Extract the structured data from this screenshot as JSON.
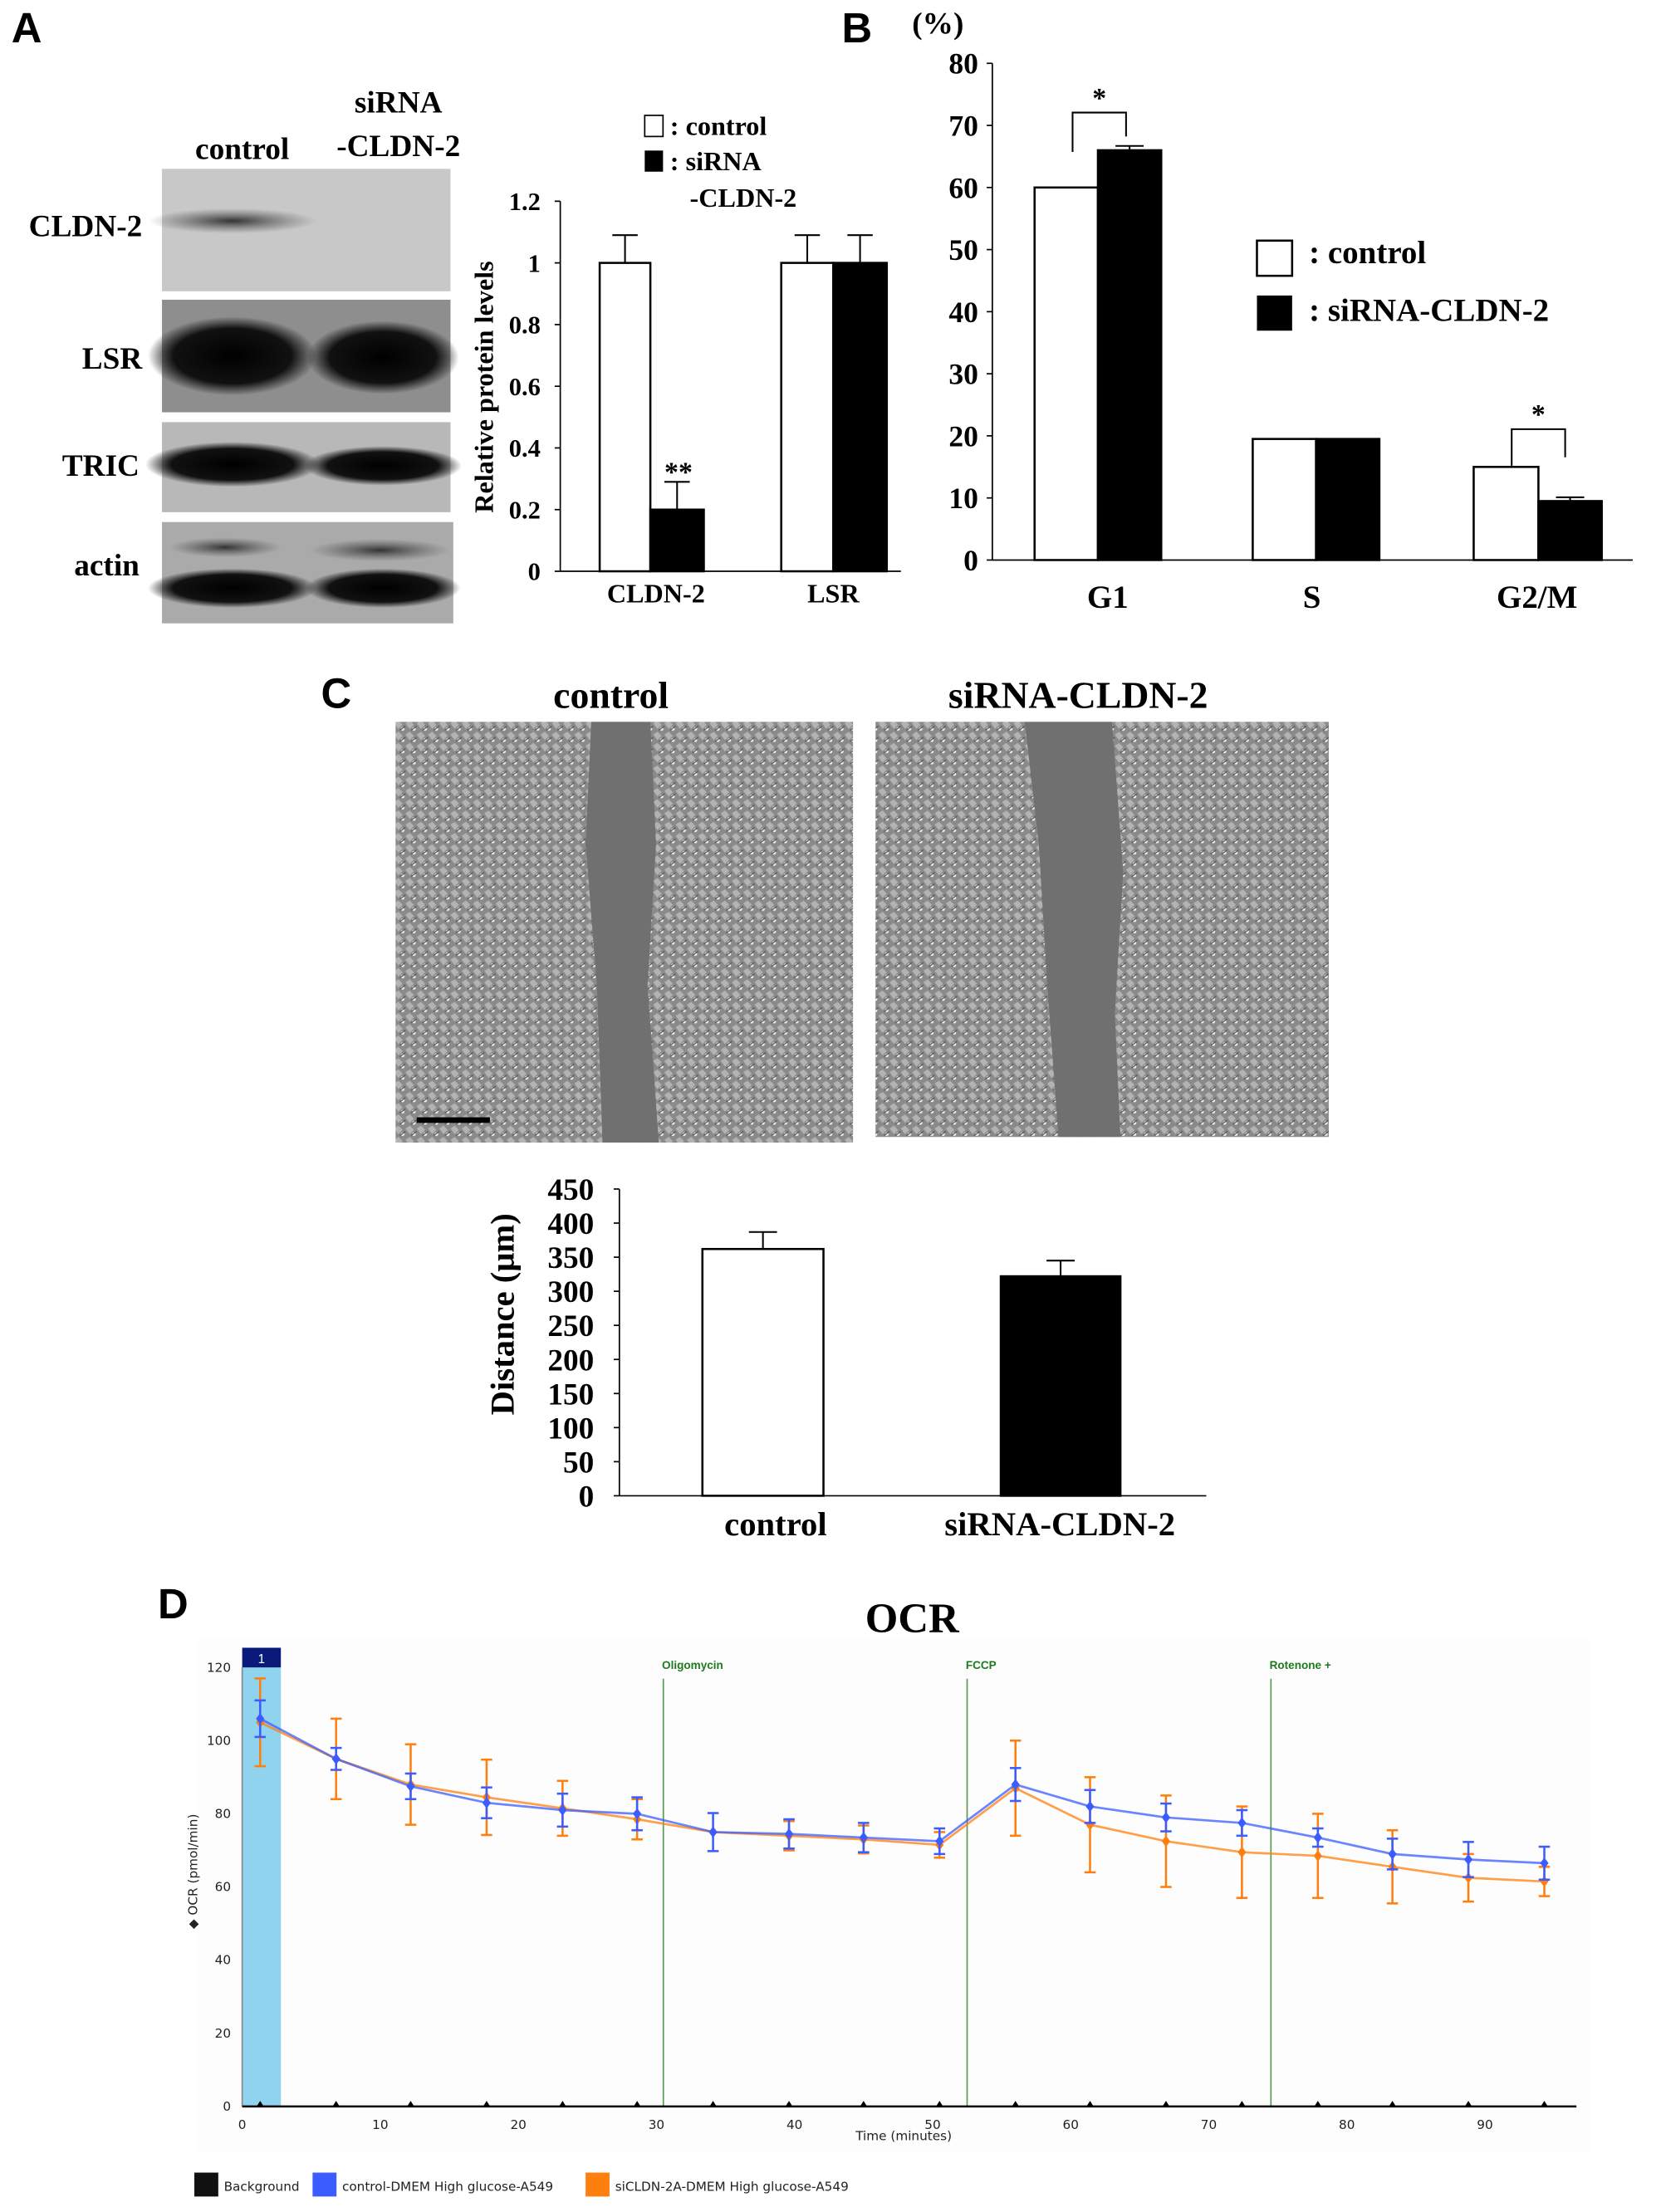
{
  "panels": {
    "a": "A",
    "b": "B",
    "c": "C",
    "d": "D"
  },
  "panel_a": {
    "blot_lanes": [
      "control",
      "siRNA",
      "-CLDN-2"
    ],
    "blot_rows": [
      "CLDN-2",
      "LSR",
      "TRIC",
      "actin"
    ],
    "legend": {
      "control": ": control",
      "si1": ": siRNA",
      "si2": "-CLDN-2"
    }
  },
  "panel_b": {
    "unit": "(%)",
    "legend": {
      "control": ": control",
      "si": ": siRNA-CLDN-2"
    }
  },
  "panel_c": {
    "image_labels": [
      "control",
      "siRNA-CLDN-2"
    ]
  },
  "chart_data": [
    {
      "id": "A",
      "type": "bar",
      "ylabel": "Relative protein levels",
      "categories": [
        "CLDN-2",
        "LSR"
      ],
      "ylim": [
        0,
        1.2
      ],
      "yticks": [
        "0",
        "0.2",
        "0.4",
        "0.6",
        "0.8",
        "1",
        "1.2"
      ],
      "series": [
        {
          "name": "control",
          "color": "#ffffff",
          "values": [
            1.0,
            1.0
          ],
          "errors": [
            0.09,
            0.09
          ]
        },
        {
          "name": "siRNA-CLDN-2",
          "color": "#000000",
          "values": [
            0.2,
            1.0
          ],
          "errors": [
            0.09,
            0.09
          ]
        }
      ],
      "annotations": [
        {
          "category": "CLDN-2",
          "series": 1,
          "text": "**"
        }
      ]
    },
    {
      "id": "B",
      "type": "bar",
      "ylabel": "(%)",
      "categories": [
        "G1",
        "S",
        "G2/M"
      ],
      "ylim": [
        0,
        80
      ],
      "yticks": [
        "0",
        "10",
        "20",
        "30",
        "40",
        "50",
        "60",
        "70",
        "80"
      ],
      "series": [
        {
          "name": "control",
          "color": "#ffffff",
          "values": [
            60,
            19.5,
            15
          ],
          "errors": [
            0,
            0,
            0
          ]
        },
        {
          "name": "siRNA-CLDN-2",
          "color": "#000000",
          "values": [
            66,
            19.5,
            9.5
          ],
          "errors": [
            0.7,
            0,
            0.6
          ]
        }
      ],
      "annotations": [
        {
          "category": "G1",
          "text": "*"
        },
        {
          "category": "G2/M",
          "text": "*"
        }
      ]
    },
    {
      "id": "C",
      "type": "bar",
      "ylabel": "Distance (μm)",
      "categories": [
        "control",
        "siRNA-CLDN-2"
      ],
      "ylim": [
        0,
        450
      ],
      "yticks": [
        "0",
        "50",
        "100",
        "150",
        "200",
        "250",
        "300",
        "350",
        "400",
        "450"
      ],
      "series": [
        {
          "colors": [
            "#ffffff",
            "#000000"
          ],
          "values": [
            362,
            322
          ],
          "errors": [
            25,
            23
          ]
        }
      ]
    },
    {
      "id": "D",
      "type": "line",
      "title": "OCR",
      "xlabel": "Time (minutes)",
      "ylabel": "OCR (pmol/min)",
      "xlim": [
        0,
        97
      ],
      "ylim": [
        0,
        120
      ],
      "xticks": [
        "0",
        "10",
        "20",
        "30",
        "40",
        "50",
        "60",
        "70",
        "80",
        "90"
      ],
      "yticks": [
        "0",
        "20",
        "40",
        "60",
        "80",
        "100",
        "120"
      ],
      "region": {
        "label": "1",
        "x": [
          0,
          2.8
        ],
        "color": "#8fd3ee"
      },
      "injections": [
        {
          "label": "Oligomycin",
          "x": 30.5
        },
        {
          "label": "FCCP",
          "x": 52.5
        },
        {
          "label": "Rotenone +",
          "x": 74.5
        }
      ],
      "x": [
        1.3,
        6.8,
        12.2,
        17.7,
        23.2,
        28.6,
        34.1,
        39.6,
        45.0,
        50.5,
        56.0,
        61.4,
        66.9,
        72.4,
        77.9,
        83.3,
        88.8,
        94.3
      ],
      "series": [
        {
          "name": "control-DMEM High glucose-A549",
          "color": "#3b5cff",
          "values": [
            106,
            95,
            87.5,
            83,
            81,
            80,
            75,
            74.5,
            73.5,
            72.5,
            88,
            82,
            79,
            77.5,
            73.5,
            69,
            67.5,
            66.5
          ],
          "errors": [
            5,
            3,
            3.5,
            4.2,
            4.5,
            4.5,
            5.2,
            4,
            4,
            3.5,
            4.5,
            4.5,
            3.8,
            3.5,
            2.5,
            4.2,
            4.8,
            4.5
          ]
        },
        {
          "name": "siCLDN-2A-DMEM High glucose-A549",
          "color": "#ff7f0e",
          "values": [
            105,
            95,
            88,
            84.5,
            81.5,
            78.5,
            75,
            74,
            73,
            71.5,
            87,
            77,
            72.5,
            69.5,
            68.5,
            65.5,
            62.5,
            61.5
          ],
          "errors": [
            12,
            11,
            11,
            10.3,
            7.5,
            5.5,
            0,
            4,
            3.8,
            3.5,
            13,
            13,
            12.5,
            12.5,
            11.5,
            10,
            6.5,
            4
          ]
        }
      ],
      "legend": [
        {
          "name": "Background",
          "color": "#111111"
        },
        {
          "name": "control-DMEM High glucose-A549",
          "color": "#3b5cff"
        },
        {
          "name": "siCLDN-2A-DMEM High glucose-A549",
          "color": "#ff7f0e"
        }
      ]
    }
  ]
}
